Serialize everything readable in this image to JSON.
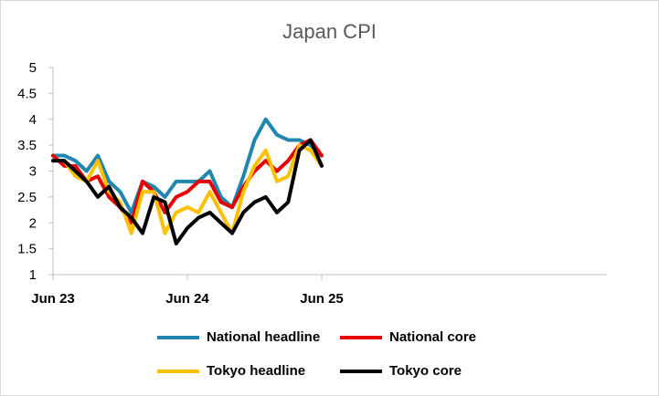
{
  "chart_data": {
    "type": "line",
    "title": "Japan CPI",
    "xlabel": "",
    "ylabel": "",
    "x_labels": [
      "Jun 23",
      "Jun 24",
      "Jun 25"
    ],
    "x": [
      "2023-06",
      "2023-07",
      "2023-08",
      "2023-09",
      "2023-10",
      "2023-11",
      "2023-12",
      "2024-01",
      "2024-02",
      "2024-03",
      "2024-04",
      "2024-05",
      "2024-06",
      "2024-07",
      "2024-08",
      "2024-09",
      "2024-10",
      "2024-11",
      "2024-12",
      "2025-01",
      "2025-02",
      "2025-03",
      "2025-04",
      "2025-05",
      "2025-06"
    ],
    "ylim": [
      1,
      5
    ],
    "yticks": [
      "1",
      "1.5",
      "2",
      "2.5",
      "3",
      "3.5",
      "4",
      "4.5",
      "5"
    ],
    "grid": false,
    "legend_position": "bottom",
    "series": [
      {
        "name": "National headline",
        "color": "#1F86B0",
        "values": [
          3.3,
          3.3,
          3.2,
          3.0,
          3.3,
          2.8,
          2.6,
          2.2,
          2.8,
          2.7,
          2.5,
          2.8,
          2.8,
          2.8,
          3.0,
          2.5,
          2.3,
          2.9,
          3.6,
          4.0,
          3.7,
          3.6,
          3.6,
          3.5,
          3.3
        ]
      },
      {
        "name": "National core",
        "color": "#E60000",
        "values": [
          3.3,
          3.1,
          3.1,
          2.8,
          2.9,
          2.5,
          2.3,
          2.0,
          2.8,
          2.6,
          2.2,
          2.5,
          2.6,
          2.8,
          2.8,
          2.4,
          2.3,
          2.7,
          3.0,
          3.2,
          3.0,
          3.2,
          3.5,
          3.6,
          3.3
        ]
      },
      {
        "name": "Tokyo headline",
        "color": "#FFC000",
        "values": [
          3.2,
          3.2,
          2.9,
          2.8,
          3.2,
          2.6,
          2.4,
          1.8,
          2.6,
          2.6,
          1.8,
          2.2,
          2.3,
          2.2,
          2.6,
          2.2,
          1.8,
          2.6,
          3.1,
          3.4,
          2.8,
          2.9,
          3.5,
          3.4,
          3.1
        ]
      },
      {
        "name": "Tokyo core",
        "color": "#000000",
        "values": [
          3.2,
          3.2,
          3.0,
          2.8,
          2.5,
          2.7,
          2.3,
          2.1,
          1.8,
          2.5,
          2.4,
          1.6,
          1.9,
          2.1,
          2.2,
          2.0,
          1.8,
          2.2,
          2.4,
          2.5,
          2.2,
          2.4,
          3.4,
          3.6,
          3.1
        ]
      }
    ]
  }
}
